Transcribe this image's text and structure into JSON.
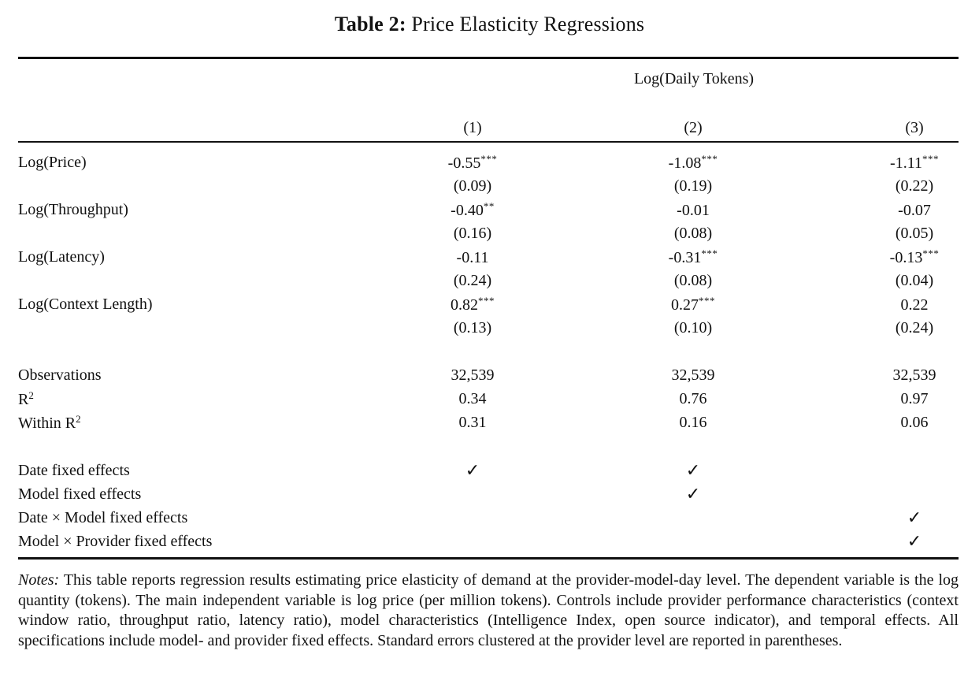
{
  "title": {
    "label": "Table 2:",
    "text": "Price Elasticity Regressions"
  },
  "header": {
    "dep_var": "Log(Daily Tokens)",
    "columns": [
      "(1)",
      "(2)",
      "(3)"
    ]
  },
  "coefficients": [
    {
      "label": "Log(Price)",
      "est": [
        "-0.55",
        "-1.08",
        "-1.11"
      ],
      "stars": [
        "***",
        "***",
        "***"
      ],
      "se": [
        "(0.09)",
        "(0.19)",
        "(0.22)"
      ]
    },
    {
      "label": "Log(Throughput)",
      "est": [
        "-0.40",
        "-0.01",
        "-0.07"
      ],
      "stars": [
        "**",
        "",
        ""
      ],
      "se": [
        "(0.16)",
        "(0.08)",
        "(0.05)"
      ]
    },
    {
      "label": "Log(Latency)",
      "est": [
        "-0.11",
        "-0.31",
        "-0.13"
      ],
      "stars": [
        "",
        "***",
        "***"
      ],
      "se": [
        "(0.24)",
        "(0.08)",
        "(0.04)"
      ]
    },
    {
      "label": "Log(Context Length)",
      "est": [
        "0.82",
        "0.27",
        "0.22"
      ],
      "stars": [
        "***",
        "***",
        ""
      ],
      "se": [
        "(0.13)",
        "(0.10)",
        "(0.24)"
      ]
    }
  ],
  "stats": [
    {
      "label": "Observations",
      "sup": "",
      "values": [
        "32,539",
        "32,539",
        "32,539"
      ]
    },
    {
      "label": "R",
      "sup": "2",
      "values": [
        "0.34",
        "0.76",
        "0.97"
      ]
    },
    {
      "label": "Within R",
      "sup": "2",
      "values": [
        "0.31",
        "0.16",
        "0.06"
      ]
    }
  ],
  "fixed_effects": [
    {
      "label": "Date fixed effects",
      "checks": [
        "✓",
        "✓",
        ""
      ]
    },
    {
      "label": "Model fixed effects",
      "checks": [
        "",
        "✓",
        ""
      ]
    },
    {
      "label": "Date × Model fixed effects",
      "checks": [
        "",
        "",
        "✓"
      ]
    },
    {
      "label": "Model × Provider fixed effects",
      "checks": [
        "",
        "",
        "✓"
      ]
    }
  ],
  "notes": {
    "label": "Notes:",
    "text": "This table reports regression results estimating price elasticity of demand at the provider-model-day level. The dependent variable is the log quantity (tokens). The main independent variable is log price (per million tokens). Controls include provider performance characteristics (context window ratio, throughput ratio, latency ratio), model characteristics (Intelligence Index, open source indicator), and temporal effects. All specifications include model- and provider fixed effects. Standard errors clustered at the provider level are reported in parentheses."
  }
}
